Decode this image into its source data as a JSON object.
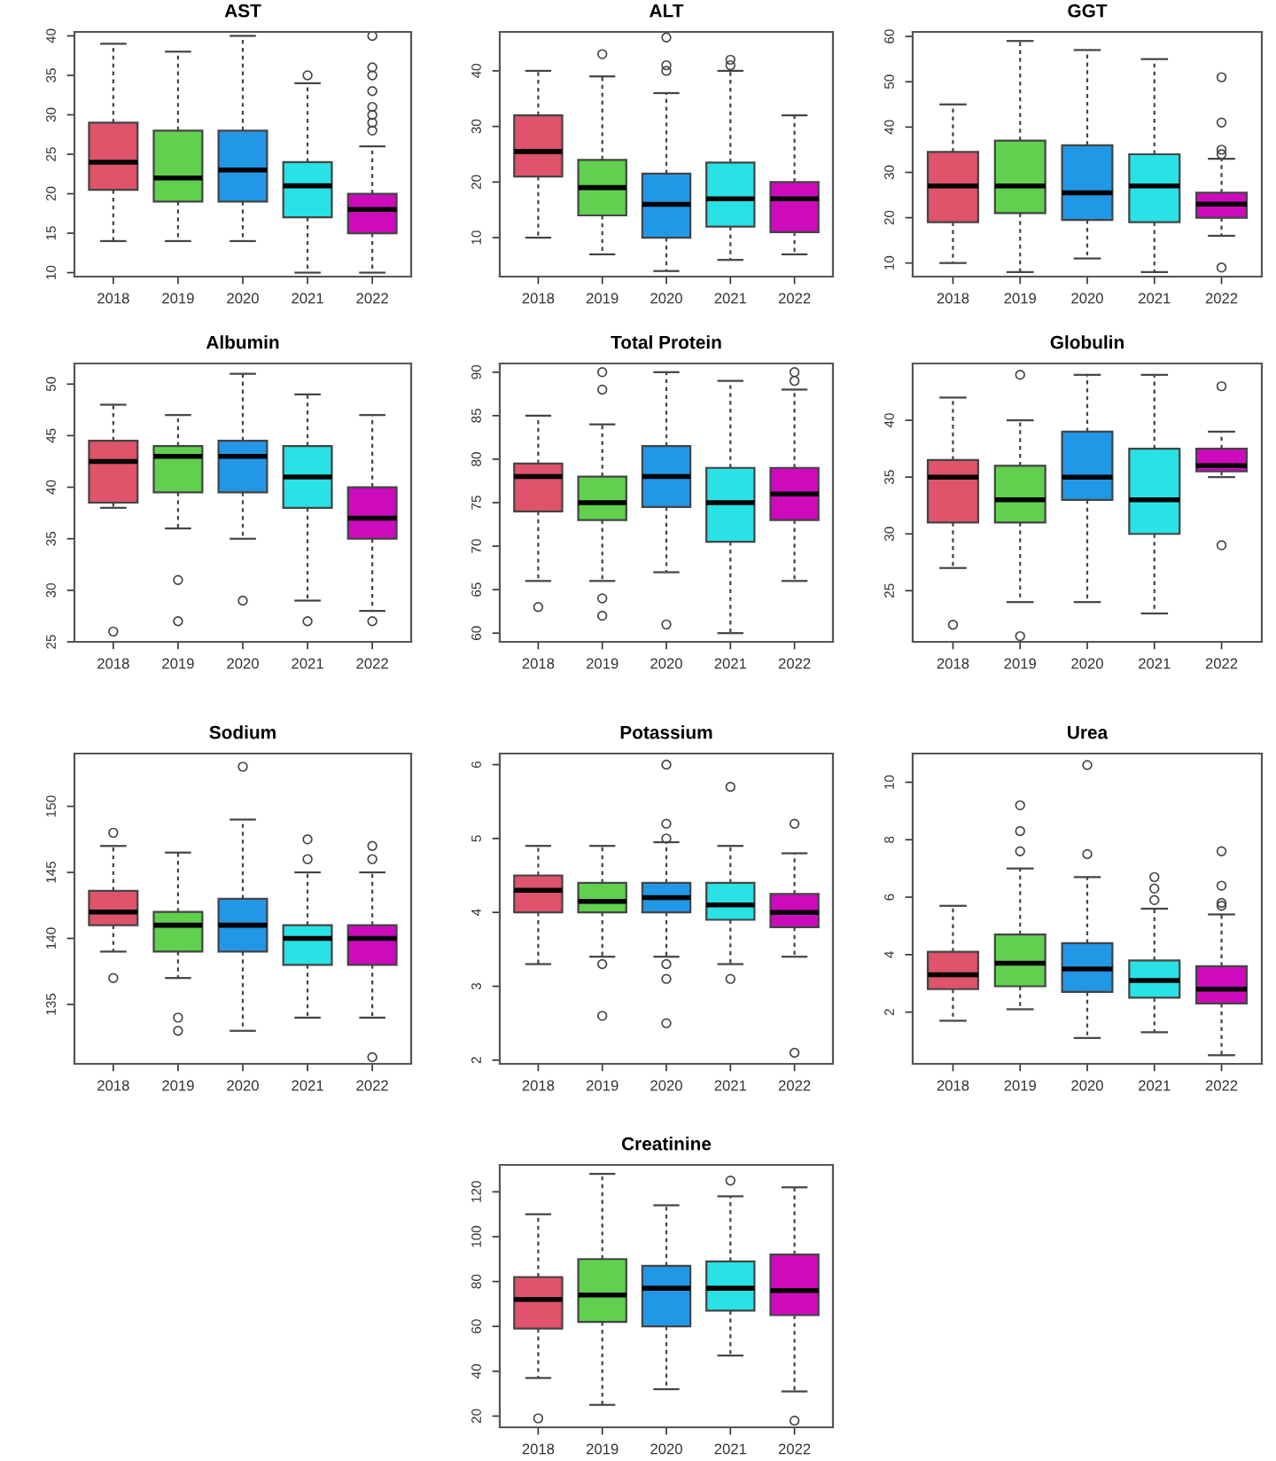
{
  "chart_data": [
    {
      "type": "box",
      "title": "AST",
      "categories": [
        "2018",
        "2019",
        "2020",
        "2021",
        "2022"
      ],
      "colors": [
        "#df536b",
        "#61d04f",
        "#2297e6",
        "#28e2e5",
        "#cd0bbc"
      ],
      "ylim": [
        9.5,
        40.5
      ],
      "yticks": [
        10,
        15,
        20,
        25,
        30,
        35,
        40
      ],
      "boxes": [
        {
          "low": 14,
          "q1": 20.5,
          "median": 24,
          "q3": 29,
          "high": 39
        },
        {
          "low": 14,
          "q1": 19,
          "median": 22,
          "q3": 28,
          "high": 38
        },
        {
          "low": 14,
          "q1": 19,
          "median": 23,
          "q3": 28,
          "high": 40
        },
        {
          "low": 10,
          "q1": 17,
          "median": 21,
          "q3": 24,
          "high": 34,
          "outliers": [
            35
          ]
        },
        {
          "low": 10,
          "q1": 15,
          "median": 18,
          "q3": 20,
          "high": 26,
          "outliers": [
            28,
            29,
            30,
            31,
            33,
            35,
            36,
            40
          ]
        }
      ]
    },
    {
      "type": "box",
      "title": "ALT",
      "categories": [
        "2018",
        "2019",
        "2020",
        "2021",
        "2022"
      ],
      "colors": [
        "#df536b",
        "#61d04f",
        "#2297e6",
        "#28e2e5",
        "#cd0bbc"
      ],
      "ylim": [
        3,
        47
      ],
      "yticks": [
        10,
        20,
        30,
        40
      ],
      "boxes": [
        {
          "low": 10,
          "q1": 21,
          "median": 25.5,
          "q3": 32,
          "high": 40
        },
        {
          "low": 7,
          "q1": 14,
          "median": 19,
          "q3": 24,
          "high": 39,
          "outliers": [
            43
          ]
        },
        {
          "low": 4,
          "q1": 10,
          "median": 16,
          "q3": 21.5,
          "high": 36,
          "outliers": [
            40,
            41,
            46
          ]
        },
        {
          "low": 6,
          "q1": 12,
          "median": 17,
          "q3": 23.5,
          "high": 40,
          "outliers": [
            41,
            42
          ]
        },
        {
          "low": 7,
          "q1": 11,
          "median": 17,
          "q3": 20,
          "high": 32
        }
      ]
    },
    {
      "type": "box",
      "title": "GGT",
      "categories": [
        "2018",
        "2019",
        "2020",
        "2021",
        "2022"
      ],
      "colors": [
        "#df536b",
        "#61d04f",
        "#2297e6",
        "#28e2e5",
        "#cd0bbc"
      ],
      "ylim": [
        7,
        61
      ],
      "yticks": [
        10,
        20,
        30,
        40,
        50,
        60
      ],
      "boxes": [
        {
          "low": 10,
          "q1": 19,
          "median": 27,
          "q3": 34.5,
          "high": 45
        },
        {
          "low": 8,
          "q1": 21,
          "median": 27,
          "q3": 37,
          "high": 59
        },
        {
          "low": 11,
          "q1": 19.5,
          "median": 25.5,
          "q3": 36,
          "high": 57
        },
        {
          "low": 8,
          "q1": 19,
          "median": 27,
          "q3": 34,
          "high": 55
        },
        {
          "low": 16,
          "q1": 20,
          "median": 23,
          "q3": 25.5,
          "high": 33,
          "outliers": [
            9,
            34,
            35,
            41,
            51
          ]
        }
      ]
    },
    {
      "type": "box",
      "title": "Albumin",
      "categories": [
        "2018",
        "2019",
        "2020",
        "2021",
        "2022"
      ],
      "colors": [
        "#df536b",
        "#61d04f",
        "#2297e6",
        "#28e2e5",
        "#cd0bbc"
      ],
      "ylim": [
        25,
        52
      ],
      "yticks": [
        25,
        30,
        35,
        40,
        45,
        50
      ],
      "boxes": [
        {
          "low": 38,
          "q1": 38.5,
          "median": 42.5,
          "q3": 44.5,
          "high": 48,
          "outliers": [
            26
          ]
        },
        {
          "low": 36,
          "q1": 39.5,
          "median": 43,
          "q3": 44,
          "high": 47,
          "outliers": [
            31,
            27
          ]
        },
        {
          "low": 35,
          "q1": 39.5,
          "median": 43,
          "q3": 44.5,
          "high": 51,
          "outliers": [
            29
          ]
        },
        {
          "low": 29,
          "q1": 38,
          "median": 41,
          "q3": 44,
          "high": 49,
          "outliers": [
            27
          ]
        },
        {
          "low": 28,
          "q1": 35,
          "median": 37,
          "q3": 40,
          "high": 47,
          "outliers": [
            27
          ]
        }
      ]
    },
    {
      "type": "box",
      "title": "Total Protein",
      "categories": [
        "2018",
        "2019",
        "2020",
        "2021",
        "2022"
      ],
      "colors": [
        "#df536b",
        "#61d04f",
        "#2297e6",
        "#28e2e5",
        "#cd0bbc"
      ],
      "ylim": [
        59,
        91
      ],
      "yticks": [
        60,
        65,
        70,
        75,
        80,
        85,
        90
      ],
      "boxes": [
        {
          "low": 66,
          "q1": 74,
          "median": 78,
          "q3": 79.5,
          "high": 85,
          "outliers": [
            63
          ]
        },
        {
          "low": 66,
          "q1": 73,
          "median": 75,
          "q3": 78,
          "high": 84,
          "outliers": [
            88,
            90,
            64,
            62
          ]
        },
        {
          "low": 67,
          "q1": 74.5,
          "median": 78,
          "q3": 81.5,
          "high": 90,
          "outliers": [
            61
          ]
        },
        {
          "low": 60,
          "q1": 70.5,
          "median": 75,
          "q3": 79,
          "high": 89
        },
        {
          "low": 66,
          "q1": 73,
          "median": 76,
          "q3": 79,
          "high": 88,
          "outliers": [
            89,
            90
          ]
        }
      ]
    },
    {
      "type": "box",
      "title": "Globulin",
      "categories": [
        "2018",
        "2019",
        "2020",
        "2021",
        "2022"
      ],
      "colors": [
        "#df536b",
        "#61d04f",
        "#2297e6",
        "#28e2e5",
        "#cd0bbc"
      ],
      "ylim": [
        20.5,
        45
      ],
      "yticks": [
        25,
        30,
        35,
        40
      ],
      "boxes": [
        {
          "low": 27,
          "q1": 31,
          "median": 35,
          "q3": 36.5,
          "high": 42,
          "outliers": [
            22
          ]
        },
        {
          "low": 24,
          "q1": 31,
          "median": 33,
          "q3": 36,
          "high": 40,
          "outliers": [
            44,
            21
          ]
        },
        {
          "low": 24,
          "q1": 33,
          "median": 35,
          "q3": 39,
          "high": 44
        },
        {
          "low": 23,
          "q1": 30,
          "median": 33,
          "q3": 37.5,
          "high": 44
        },
        {
          "low": 35,
          "q1": 35.5,
          "median": 36,
          "q3": 37.5,
          "high": 39,
          "outliers": [
            43,
            29
          ]
        }
      ]
    },
    {
      "type": "box",
      "title": "Sodium",
      "categories": [
        "2018",
        "2019",
        "2020",
        "2021",
        "2022"
      ],
      "colors": [
        "#df536b",
        "#61d04f",
        "#2297e6",
        "#28e2e5",
        "#cd0bbc"
      ],
      "ylim": [
        130.5,
        154
      ],
      "yticks": [
        135,
        140,
        145,
        150
      ],
      "boxes": [
        {
          "low": 139,
          "q1": 141,
          "median": 142,
          "q3": 143.6,
          "high": 147,
          "outliers": [
            148,
            137
          ]
        },
        {
          "low": 137,
          "q1": 139,
          "median": 141,
          "q3": 142,
          "high": 146.5,
          "outliers": [
            134,
            133
          ]
        },
        {
          "low": 133,
          "q1": 139,
          "median": 141,
          "q3": 143,
          "high": 149,
          "outliers": [
            153
          ]
        },
        {
          "low": 134,
          "q1": 138,
          "median": 140,
          "q3": 141,
          "high": 145,
          "outliers": [
            146,
            147.5
          ]
        },
        {
          "low": 134,
          "q1": 138,
          "median": 140,
          "q3": 141,
          "high": 145,
          "outliers": [
            146,
            147,
            131
          ]
        }
      ]
    },
    {
      "type": "box",
      "title": "Potassium",
      "categories": [
        "2018",
        "2019",
        "2020",
        "2021",
        "2022"
      ],
      "colors": [
        "#df536b",
        "#61d04f",
        "#2297e6",
        "#28e2e5",
        "#cd0bbc"
      ],
      "ylim": [
        1.95,
        6.15
      ],
      "yticks": [
        2,
        3,
        4,
        5,
        6
      ],
      "boxes": [
        {
          "low": 3.3,
          "q1": 4.0,
          "median": 4.3,
          "q3": 4.5,
          "high": 4.9
        },
        {
          "low": 3.4,
          "q1": 4.0,
          "median": 4.15,
          "q3": 4.4,
          "high": 4.9,
          "outliers": [
            3.3,
            2.6
          ]
        },
        {
          "low": 3.4,
          "q1": 4.0,
          "median": 4.2,
          "q3": 4.4,
          "high": 4.95,
          "outliers": [
            5.0,
            5.2,
            6.0,
            3.3,
            3.1,
            2.5
          ]
        },
        {
          "low": 3.3,
          "q1": 3.9,
          "median": 4.1,
          "q3": 4.4,
          "high": 4.9,
          "outliers": [
            5.7,
            3.1
          ]
        },
        {
          "low": 3.4,
          "q1": 3.8,
          "median": 4.0,
          "q3": 4.25,
          "high": 4.8,
          "outliers": [
            5.2,
            2.1
          ]
        }
      ]
    },
    {
      "type": "box",
      "title": "Urea",
      "categories": [
        "2018",
        "2019",
        "2020",
        "2021",
        "2022"
      ],
      "colors": [
        "#df536b",
        "#61d04f",
        "#2297e6",
        "#28e2e5",
        "#cd0bbc"
      ],
      "ylim": [
        0.2,
        11
      ],
      "yticks": [
        2,
        4,
        6,
        8,
        10
      ],
      "boxes": [
        {
          "low": 1.7,
          "q1": 2.8,
          "median": 3.3,
          "q3": 4.1,
          "high": 5.7
        },
        {
          "low": 2.1,
          "q1": 2.9,
          "median": 3.7,
          "q3": 4.7,
          "high": 7.0,
          "outliers": [
            7.6,
            8.3,
            9.2
          ]
        },
        {
          "low": 1.1,
          "q1": 2.7,
          "median": 3.5,
          "q3": 4.4,
          "high": 6.7,
          "outliers": [
            7.5,
            10.6
          ]
        },
        {
          "low": 1.3,
          "q1": 2.5,
          "median": 3.1,
          "q3": 3.8,
          "high": 5.6,
          "outliers": [
            5.9,
            6.3,
            6.7
          ]
        },
        {
          "low": 0.5,
          "q1": 2.3,
          "median": 2.8,
          "q3": 3.6,
          "high": 5.4,
          "outliers": [
            5.7,
            5.8,
            6.4,
            7.6
          ]
        }
      ]
    },
    {
      "type": "box",
      "title": "Creatinine",
      "categories": [
        "2018",
        "2019",
        "2020",
        "2021",
        "2022"
      ],
      "colors": [
        "#df536b",
        "#61d04f",
        "#2297e6",
        "#28e2e5",
        "#cd0bbc"
      ],
      "ylim": [
        15,
        132
      ],
      "yticks": [
        20,
        40,
        60,
        80,
        100,
        120
      ],
      "boxes": [
        {
          "low": 37,
          "q1": 59,
          "median": 72,
          "q3": 82,
          "high": 110,
          "outliers": [
            19
          ]
        },
        {
          "low": 25,
          "q1": 62,
          "median": 74,
          "q3": 90,
          "high": 128
        },
        {
          "low": 32,
          "q1": 60,
          "median": 77,
          "q3": 87,
          "high": 114
        },
        {
          "low": 47,
          "q1": 67,
          "median": 77,
          "q3": 89,
          "high": 118,
          "outliers": [
            125
          ]
        },
        {
          "low": 31,
          "q1": 65,
          "median": 76,
          "q3": 92,
          "high": 122,
          "outliers": [
            18
          ]
        }
      ]
    }
  ]
}
